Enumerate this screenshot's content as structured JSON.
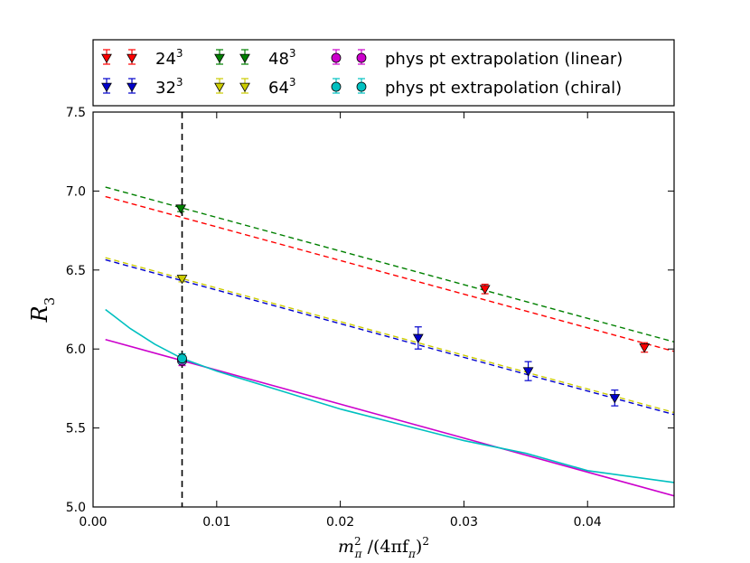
{
  "chart_data": {
    "type": "scatter",
    "title": "",
    "xlabel_main": "m",
    "xlabel_main_sub": "π",
    "xlabel_main_sup": "2",
    "xlabel_rest": "/(4πf",
    "xlabel_rest_sub": "π",
    "xlabel_rest_end": ")",
    "xlabel_rest_sup": "2",
    "ylabel": "R",
    "ylabel_sub": "3",
    "xlim": [
      0.0,
      0.047
    ],
    "ylim": [
      5.0,
      7.5
    ],
    "xticks": [
      0.0,
      0.01,
      0.02,
      0.03,
      0.04
    ],
    "xtick_labels": [
      "0.00",
      "0.01",
      "0.02",
      "0.03",
      "0.04"
    ],
    "yticks": [
      5.0,
      5.5,
      6.0,
      6.5,
      7.0,
      7.5
    ],
    "ytick_labels": [
      "5.0",
      "5.5",
      "6.0",
      "6.5",
      "7.0",
      "7.5"
    ],
    "physical_point_x": 0.0072,
    "series": [
      {
        "name": "24",
        "name_sup": "3",
        "color": "#ff0000",
        "marker": "triangle-down",
        "points": [
          {
            "x": 0.0317,
            "y": 6.38,
            "err": 0.03
          },
          {
            "x": 0.0446,
            "y": 6.01,
            "err": 0.03
          }
        ],
        "fit_line": {
          "x0": 0.001,
          "y0": 6.965,
          "x1": 0.047,
          "y1": 5.985
        }
      },
      {
        "name": "32",
        "name_sup": "3",
        "color": "#0000cc",
        "marker": "triangle-down",
        "points": [
          {
            "x": 0.0263,
            "y": 6.07,
            "err": 0.07
          },
          {
            "x": 0.0352,
            "y": 5.86,
            "err": 0.06
          },
          {
            "x": 0.0422,
            "y": 5.69,
            "err": 0.05
          }
        ],
        "fit_line": {
          "x0": 0.001,
          "y0": 6.565,
          "x1": 0.047,
          "y1": 5.585
        }
      },
      {
        "name": "48",
        "name_sup": "3",
        "color": "#008000",
        "marker": "triangle-down",
        "points": [
          {
            "x": 0.0071,
            "y": 6.89,
            "err": 0.02
          }
        ],
        "fit_line": {
          "x0": 0.001,
          "y0": 7.025,
          "x1": 0.047,
          "y1": 6.045
        }
      },
      {
        "name": "64",
        "name_sup": "3",
        "color": "#cccc00",
        "marker": "triangle-down",
        "points": [
          {
            "x": 0.0072,
            "y": 6.445,
            "err": 0.02
          }
        ],
        "fit_line": {
          "x0": 0.001,
          "y0": 6.578,
          "x1": 0.047,
          "y1": 5.598
        }
      }
    ],
    "extrapolations": [
      {
        "name": "phys pt extrapolation (linear)",
        "color": "#cc00cc",
        "marker": "circle",
        "point": {
          "x": 0.0072,
          "y": 5.925,
          "err": 0.03
        },
        "curve_type": "linear",
        "curve": {
          "x0": 0.001,
          "y0": 6.06,
          "x1": 0.047,
          "y1": 5.07
        }
      },
      {
        "name": "phys pt extrapolation (chiral)",
        "color": "#00c0c0",
        "marker": "circle",
        "point": {
          "x": 0.0072,
          "y": 5.94,
          "err": 0.03
        },
        "curve_type": "chiral",
        "curve_samples": [
          [
            0.001,
            6.25
          ],
          [
            0.003,
            6.13
          ],
          [
            0.005,
            6.03
          ],
          [
            0.0072,
            5.94
          ],
          [
            0.01,
            5.86
          ],
          [
            0.015,
            5.74
          ],
          [
            0.02,
            5.62
          ],
          [
            0.025,
            5.52
          ],
          [
            0.03,
            5.42
          ],
          [
            0.035,
            5.34
          ],
          [
            0.04,
            5.23
          ],
          [
            0.047,
            5.155
          ]
        ]
      }
    ],
    "legend_placement": "top (above axes)",
    "grid": false
  }
}
